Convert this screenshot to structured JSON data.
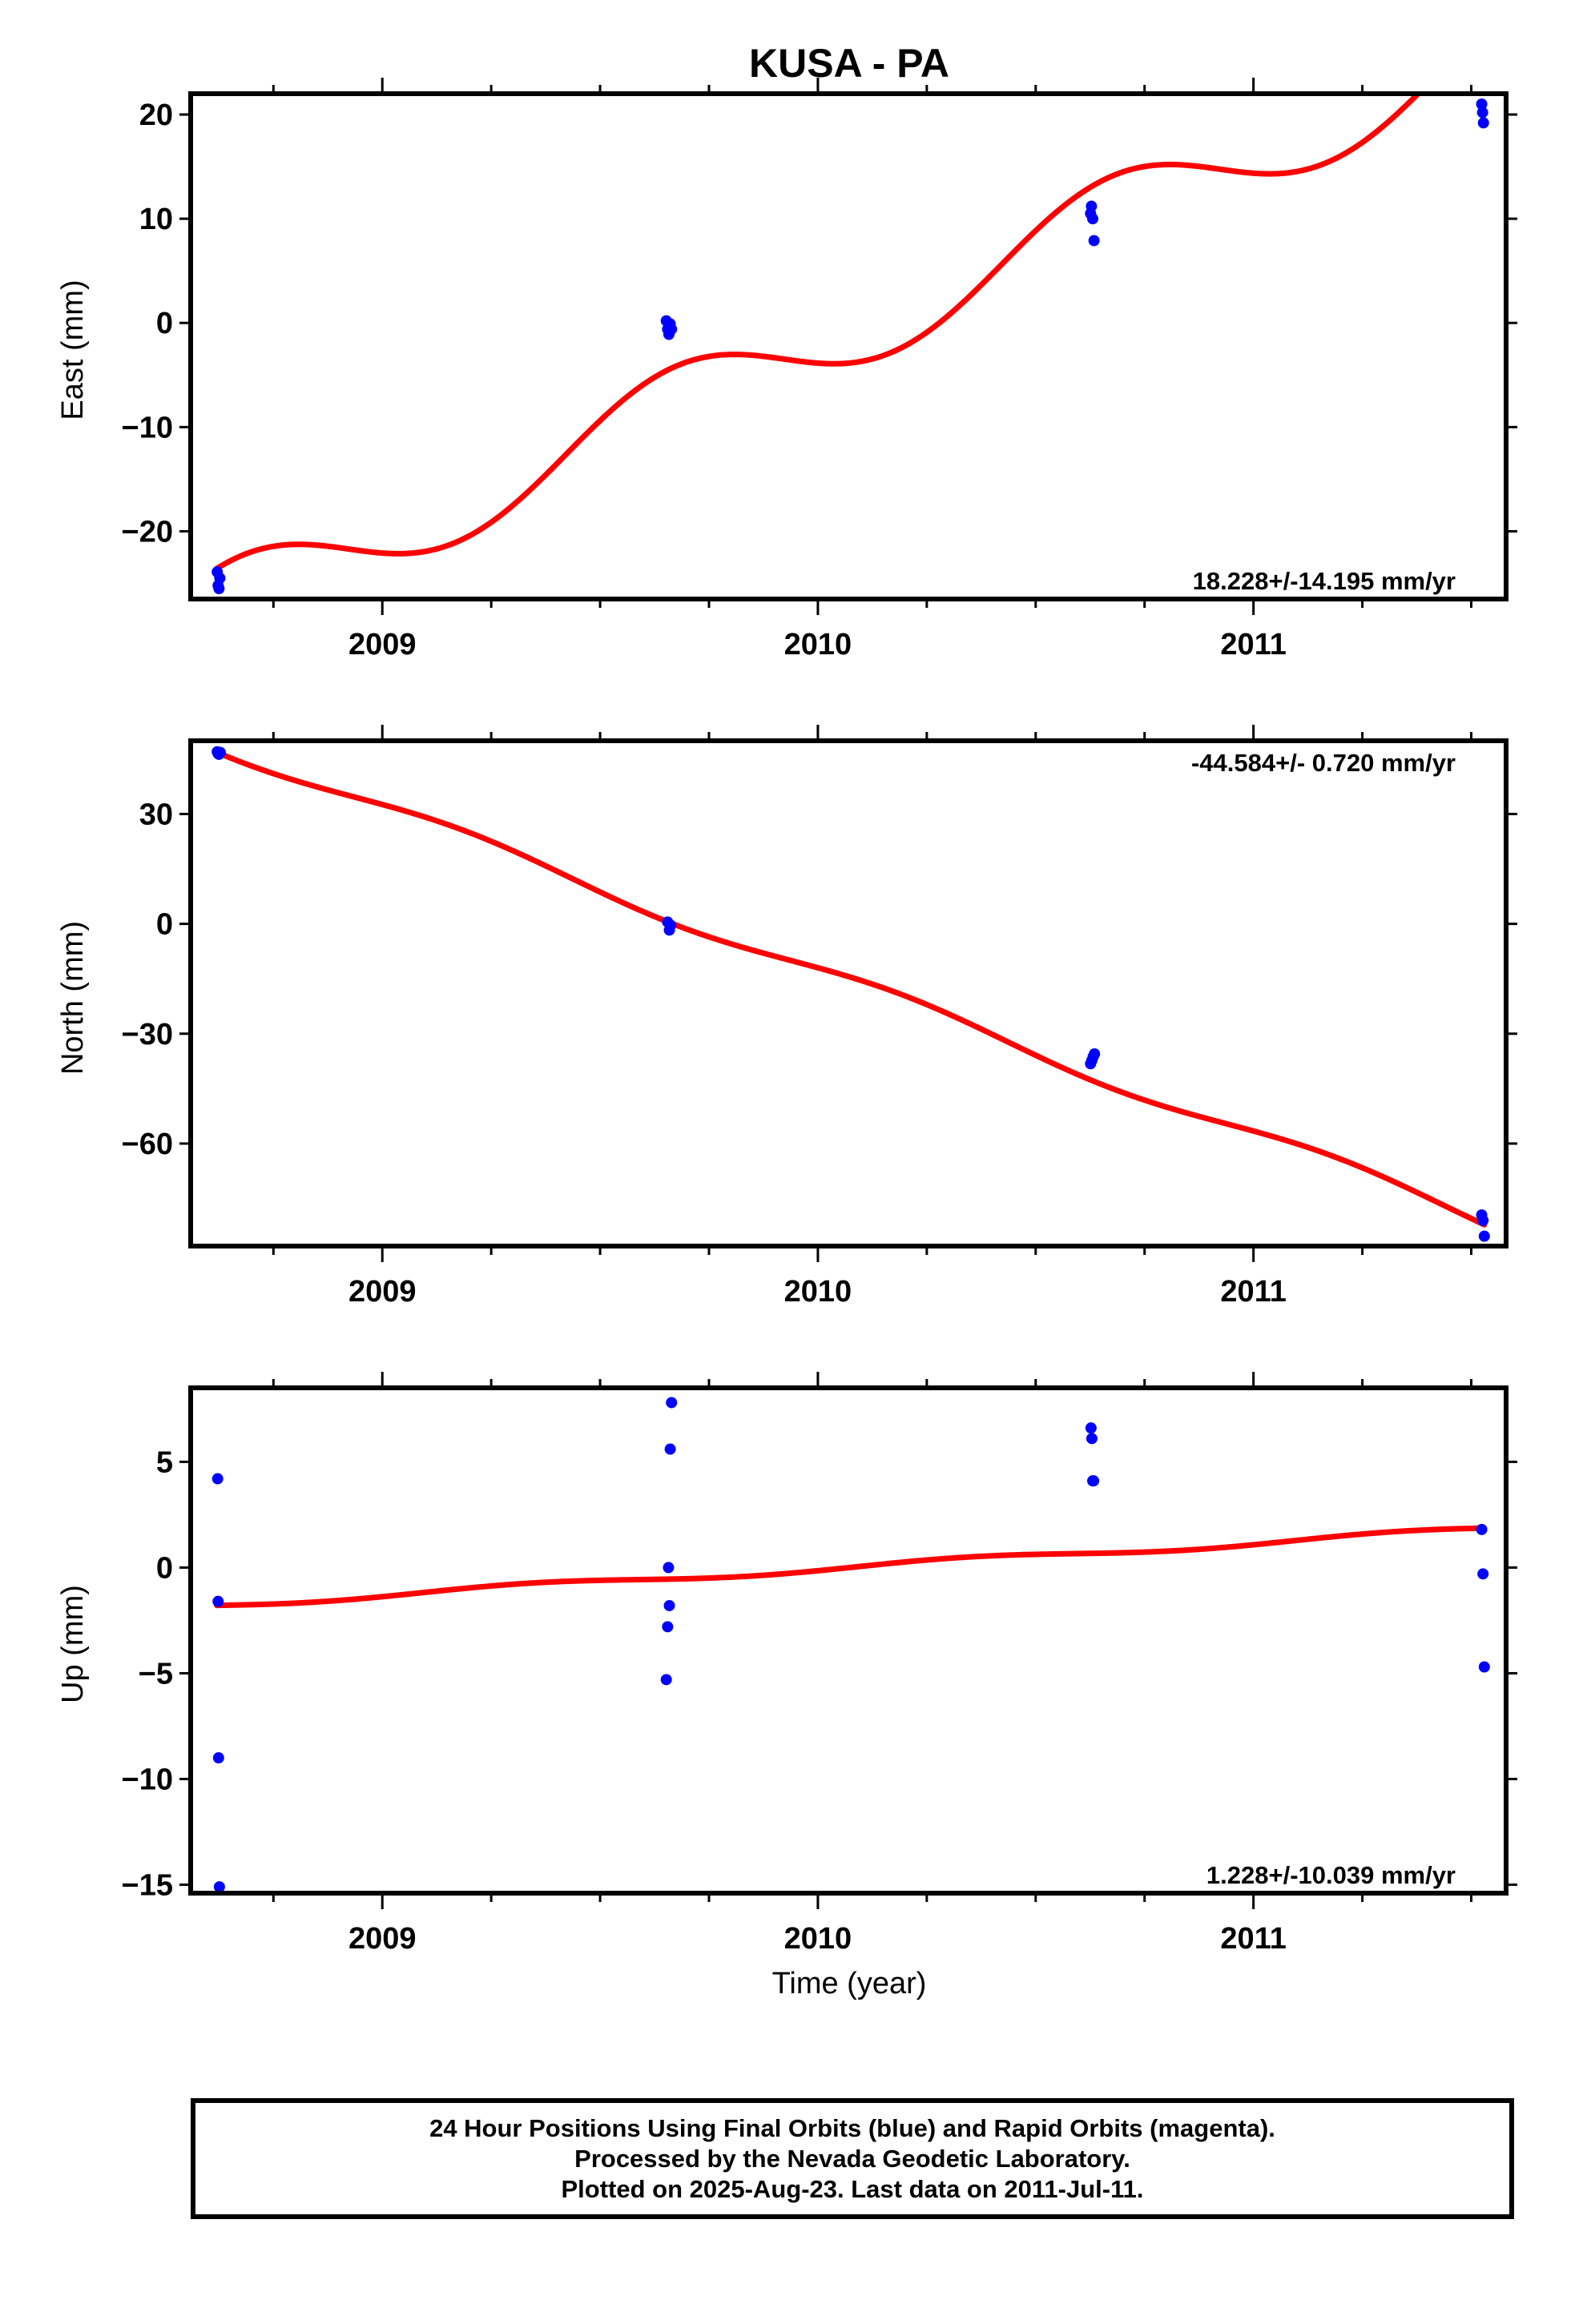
{
  "colors": {
    "fit": "#ff0000",
    "final_orbits": "#0000ff",
    "frame": "#000000"
  },
  "title": "KUSA - PA",
  "xlabel": "Time (year)",
  "footer": {
    "line1": "24 Hour Positions Using Final Orbits (blue) and Rapid Orbits (magenta).",
    "line2": "Processed by the Nevada Geodetic Laboratory.",
    "line3": "Plotted on 2025-Aug-23. Last data on 2011-Jul-11."
  },
  "chart_data": [
    {
      "type": "scatter",
      "panel": "east",
      "title": "KUSA - PA",
      "ylabel": "East (mm)",
      "xlabel": "",
      "xlim": [
        2008.56,
        2011.58
      ],
      "ylim": [
        -26.5,
        22.0
      ],
      "xticks": [
        2009,
        2010,
        2011
      ],
      "xtick_labels": [
        "2009",
        "2010",
        "2011"
      ],
      "yticks": [
        -20,
        -10,
        0,
        10,
        20
      ],
      "ytick_labels": [
        "−20",
        "−10",
        "0",
        "10",
        "20"
      ],
      "grid": false,
      "rate_label": "18.228+/-14.195 mm/yr",
      "rate_label_position": "bottom-right",
      "series": [
        {
          "role": "points",
          "x": [
            2008.621,
            2008.623,
            2008.625,
            2008.627,
            2009.652,
            2009.655,
            2009.658,
            2009.661,
            2009.664,
            2010.626,
            2010.628,
            2010.631,
            2010.634,
            2011.524,
            2011.526,
            2011.528
          ],
          "y": [
            -23.9,
            -25.2,
            -25.5,
            -24.5,
            0.2,
            -0.6,
            -1.1,
            -0.1,
            -0.6,
            10.5,
            11.2,
            10.0,
            7.9,
            21.0,
            20.2,
            19.2
          ]
        },
        {
          "role": "fit",
          "rate": 18.228,
          "t0": 2010.0,
          "offset": -2.06,
          "annual_sin": -3.4,
          "annual_cos": -1.8,
          "x_range": [
            2008.62,
            2011.53
          ]
        }
      ]
    },
    {
      "type": "scatter",
      "panel": "north",
      "ylabel": "North (mm)",
      "xlabel": "",
      "xlim": [
        2008.56,
        2011.58
      ],
      "ylim": [
        -88.0,
        50.0
      ],
      "xticks": [
        2009,
        2010,
        2011
      ],
      "xtick_labels": [
        "2009",
        "2010",
        "2011"
      ],
      "yticks": [
        -60,
        -30,
        0,
        30
      ],
      "ytick_labels": [
        "−60",
        "−30",
        "0",
        "30"
      ],
      "grid": false,
      "rate_label": "-44.584+/- 0.720 mm/yr",
      "rate_label_position": "top-right",
      "series": [
        {
          "role": "points",
          "x": [
            2008.621,
            2008.623,
            2008.625,
            2008.628,
            2009.655,
            2009.659,
            2009.662,
            2010.626,
            2010.629,
            2010.632,
            2010.635,
            2011.524,
            2011.527,
            2011.53
          ],
          "y": [
            47.0,
            46.5,
            46.3,
            46.8,
            0.5,
            -1.7,
            -0.4,
            -38.2,
            -37.3,
            -36.3,
            -35.5,
            -79.5,
            -81.0,
            -85.3
          ]
        },
        {
          "role": "fit",
          "rate": -44.584,
          "t0": 2010.0,
          "offset": -12.8,
          "annual_sin": 1.9,
          "annual_cos": 0.8,
          "x_range": [
            2008.62,
            2011.53
          ]
        }
      ]
    },
    {
      "type": "scatter",
      "panel": "up",
      "ylabel": "Up (mm)",
      "xlabel": "Time (year)",
      "xlim": [
        2008.56,
        2011.58
      ],
      "ylim": [
        -15.4,
        8.5
      ],
      "xticks": [
        2009,
        2010,
        2011
      ],
      "xtick_labels": [
        "2009",
        "2010",
        "2011"
      ],
      "yticks": [
        -15,
        -10,
        -5,
        0,
        5
      ],
      "ytick_labels": [
        "−15",
        "−10",
        "−5",
        "0",
        "5"
      ],
      "grid": false,
      "rate_label": "1.228+/-10.039 mm/yr",
      "rate_label_position": "bottom-right",
      "series": [
        {
          "role": "points",
          "x": [
            2008.622,
            2008.623,
            2008.624,
            2008.626,
            2009.652,
            2009.655,
            2009.657,
            2009.659,
            2009.661,
            2009.664,
            2010.627,
            2010.629,
            2010.631,
            2010.633,
            2011.524,
            2011.527,
            2011.53
          ],
          "y": [
            4.2,
            -1.6,
            -9.0,
            -15.1,
            -5.3,
            -2.8,
            0.0,
            -1.8,
            5.6,
            7.8,
            6.6,
            6.1,
            4.1,
            4.1,
            1.8,
            -0.3,
            -4.7
          ]
        },
        {
          "role": "fit",
          "rate": 1.228,
          "t0": 2010.0,
          "offset": -0.07,
          "annual_sin": 0.12,
          "annual_cos": -0.08,
          "x_range": [
            2008.62,
            2011.53
          ]
        }
      ]
    }
  ]
}
